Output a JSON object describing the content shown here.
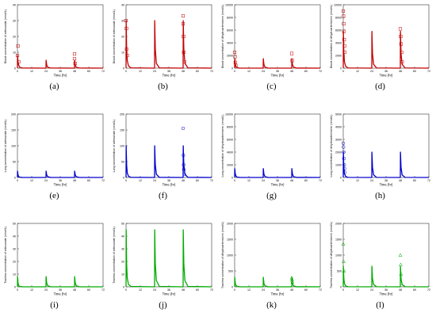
{
  "chart_data": [
    {
      "id": "a",
      "type": "line",
      "ylabel": "Blood concentration of artesunate (nmol/L)",
      "xlabel": "Time (hr)",
      "yticks": [
        0,
        10,
        20,
        30,
        40
      ],
      "ylim": [
        0,
        40
      ],
      "xticks": [
        0,
        12,
        24,
        36,
        48,
        60,
        72
      ],
      "xlim": [
        0,
        72
      ],
      "color": "#c00000",
      "marker": "square",
      "line_points": [
        [
          0,
          0
        ],
        [
          0.1,
          8
        ],
        [
          0.5,
          4
        ],
        [
          1,
          2
        ],
        [
          2,
          0.5
        ],
        [
          4,
          0.1
        ],
        [
          24,
          0
        ],
        [
          24.1,
          5
        ],
        [
          24.6,
          2
        ],
        [
          25.5,
          0.5
        ],
        [
          28,
          0.1
        ],
        [
          48,
          0
        ],
        [
          48.1,
          5
        ],
        [
          48.6,
          2
        ],
        [
          49.5,
          0.5
        ],
        [
          52,
          0.1
        ],
        [
          72,
          0
        ]
      ],
      "obs_points": [
        [
          0,
          8
        ],
        [
          0.5,
          14
        ],
        [
          1,
          4
        ],
        [
          48,
          9
        ],
        [
          48,
          6
        ],
        [
          48.5,
          3
        ]
      ]
    },
    {
      "id": "b",
      "type": "line",
      "ylabel": "Blood concentration of artesunate (nmol/L)",
      "xlabel": "Time (hr)",
      "yticks": [
        0,
        10,
        20,
        30,
        40
      ],
      "ylim": [
        0,
        40
      ],
      "xticks": [
        0,
        12,
        24,
        36,
        48,
        60,
        72
      ],
      "xlim": [
        0,
        72
      ],
      "color": "#c00000",
      "marker": "square",
      "line_points": [
        [
          0,
          0
        ],
        [
          0.1,
          30
        ],
        [
          0.5,
          12
        ],
        [
          1,
          5
        ],
        [
          2,
          1.5
        ],
        [
          4,
          0.2
        ],
        [
          24,
          0
        ],
        [
          24.1,
          30
        ],
        [
          24.6,
          12
        ],
        [
          25.5,
          3
        ],
        [
          28,
          0.2
        ],
        [
          48,
          0
        ],
        [
          48.1,
          30
        ],
        [
          48.6,
          12
        ],
        [
          49.5,
          3
        ],
        [
          52,
          0.2
        ],
        [
          72,
          0
        ]
      ],
      "obs_points": [
        [
          0,
          30
        ],
        [
          0.3,
          25
        ],
        [
          0.5,
          12
        ],
        [
          1,
          8
        ],
        [
          48,
          33
        ],
        [
          48,
          28
        ],
        [
          48.3,
          20
        ],
        [
          48.5,
          10
        ],
        [
          49,
          4
        ]
      ]
    },
    {
      "id": "c",
      "type": "line",
      "ylabel": "Blood concentration of dihydroartemisinin (nmol/L)",
      "xlabel": "Time (hr)",
      "yticks": [
        0,
        2000,
        4000,
        6000,
        8000,
        10000
      ],
      "ylim": [
        0,
        10000
      ],
      "xticks": [
        0,
        12,
        24,
        36,
        48,
        60,
        72
      ],
      "xlim": [
        0,
        72
      ],
      "color": "#c00000",
      "marker": "square",
      "line_points": [
        [
          0,
          0
        ],
        [
          0.1,
          1500
        ],
        [
          0.5,
          700
        ],
        [
          1,
          300
        ],
        [
          2,
          80
        ],
        [
          4,
          10
        ],
        [
          24,
          0
        ],
        [
          24.1,
          1500
        ],
        [
          24.6,
          600
        ],
        [
          25.5,
          150
        ],
        [
          28,
          10
        ],
        [
          48,
          0
        ],
        [
          48.1,
          1500
        ],
        [
          48.6,
          600
        ],
        [
          49.5,
          150
        ],
        [
          52,
          10
        ],
        [
          72,
          0
        ]
      ],
      "obs_points": [
        [
          0,
          2500
        ],
        [
          0.3,
          1800
        ],
        [
          0.6,
          900
        ],
        [
          1,
          400
        ],
        [
          48,
          2300
        ],
        [
          48.4,
          1200
        ]
      ]
    },
    {
      "id": "d",
      "type": "line",
      "ylabel": "Blood concentration of dihydroartemisinin (nmol/L)",
      "xlabel": "Time (hr)",
      "yticks": [
        0,
        2000,
        4000,
        6000,
        8000,
        10000
      ],
      "ylim": [
        0,
        10000
      ],
      "xticks": [
        0,
        12,
        24,
        36,
        48,
        60,
        72
      ],
      "xlim": [
        0,
        72
      ],
      "color": "#c00000",
      "marker": "square",
      "line_points": [
        [
          0,
          0
        ],
        [
          0.1,
          5800
        ],
        [
          0.5,
          2500
        ],
        [
          1,
          1000
        ],
        [
          2,
          300
        ],
        [
          4,
          30
        ],
        [
          24,
          0
        ],
        [
          24.1,
          5800
        ],
        [
          24.6,
          2300
        ],
        [
          25.5,
          600
        ],
        [
          28,
          30
        ],
        [
          48,
          0
        ],
        [
          48.1,
          5800
        ],
        [
          48.6,
          2300
        ],
        [
          49.5,
          600
        ],
        [
          52,
          30
        ],
        [
          72,
          0
        ]
      ],
      "obs_points": [
        [
          0,
          9000
        ],
        [
          0.2,
          8200
        ],
        [
          0.4,
          7000
        ],
        [
          0.6,
          5800
        ],
        [
          0.8,
          4500
        ],
        [
          1,
          3500
        ],
        [
          1.3,
          2500
        ],
        [
          48,
          6200
        ],
        [
          48.3,
          5000
        ],
        [
          48.6,
          3800
        ],
        [
          49,
          2500
        ],
        [
          49.5,
          1000
        ]
      ]
    },
    {
      "id": "e",
      "type": "line",
      "ylabel": "Lung concentration of artesunate (nmol/L)",
      "xlabel": "Time (hr)",
      "yticks": [
        0,
        50,
        100,
        150,
        200
      ],
      "ylim": [
        0,
        200
      ],
      "xticks": [
        0,
        12,
        24,
        36,
        48,
        60,
        72
      ],
      "xlim": [
        0,
        72
      ],
      "color": "#0000cc",
      "marker": "circle",
      "line_points": [
        [
          0,
          0
        ],
        [
          0.1,
          20
        ],
        [
          0.5,
          8
        ],
        [
          1,
          3
        ],
        [
          2,
          1
        ],
        [
          4,
          0.2
        ],
        [
          24,
          0
        ],
        [
          24.1,
          20
        ],
        [
          24.6,
          8
        ],
        [
          25.5,
          2
        ],
        [
          28,
          0.2
        ],
        [
          48,
          0
        ],
        [
          48.1,
          20
        ],
        [
          48.6,
          8
        ],
        [
          49.5,
          2
        ],
        [
          52,
          0.2
        ],
        [
          72,
          0
        ]
      ],
      "obs_points": []
    },
    {
      "id": "f",
      "type": "line",
      "ylabel": "Lung concentration of artesunate (nmol/L)",
      "xlabel": "Time (hr)",
      "yticks": [
        0,
        50,
        100,
        150,
        200
      ],
      "ylim": [
        0,
        200
      ],
      "xticks": [
        0,
        12,
        24,
        36,
        48,
        60,
        72
      ],
      "xlim": [
        0,
        72
      ],
      "color": "#0000cc",
      "marker": "circle",
      "line_points": [
        [
          0,
          0
        ],
        [
          0.1,
          100
        ],
        [
          0.5,
          40
        ],
        [
          1,
          15
        ],
        [
          2,
          4
        ],
        [
          4,
          0.5
        ],
        [
          24,
          0
        ],
        [
          24.1,
          100
        ],
        [
          24.6,
          40
        ],
        [
          25.5,
          10
        ],
        [
          28,
          0.5
        ],
        [
          48,
          0
        ],
        [
          48.1,
          100
        ],
        [
          48.6,
          40
        ],
        [
          49.5,
          10
        ],
        [
          52,
          0.5
        ],
        [
          72,
          0
        ]
      ],
      "obs_points": [
        [
          48,
          155
        ],
        [
          48.2,
          70
        ],
        [
          48.4,
          40
        ],
        [
          48.6,
          25
        ],
        [
          49,
          10
        ]
      ]
    },
    {
      "id": "g",
      "type": "line",
      "ylabel": "Lung concentration of dihydroartemisinin (nmol/L)",
      "xlabel": "Time (hr)",
      "yticks": [
        0,
        2000,
        4000,
        6000,
        8000,
        10000
      ],
      "ylim": [
        0,
        10000
      ],
      "xticks": [
        0,
        12,
        24,
        36,
        48,
        60,
        72
      ],
      "xlim": [
        0,
        72
      ],
      "color": "#0000cc",
      "marker": "circle",
      "line_points": [
        [
          0,
          0
        ],
        [
          0.1,
          1400
        ],
        [
          0.5,
          600
        ],
        [
          1,
          250
        ],
        [
          2,
          60
        ],
        [
          4,
          10
        ],
        [
          24,
          0
        ],
        [
          24.1,
          1400
        ],
        [
          24.6,
          550
        ],
        [
          25.5,
          130
        ],
        [
          28,
          10
        ],
        [
          48,
          0
        ],
        [
          48.1,
          1400
        ],
        [
          48.6,
          550
        ],
        [
          49.5,
          130
        ],
        [
          52,
          10
        ],
        [
          72,
          0
        ]
      ],
      "obs_points": []
    },
    {
      "id": "h",
      "type": "line",
      "ylabel": "Lung concentration of dihydroartemisinin (nmol/L)",
      "xlabel": "Time (hr)",
      "yticks": [
        0,
        1000,
        2000,
        3000,
        4000,
        5000
      ],
      "ylim": [
        0,
        5000
      ],
      "xticks": [
        0,
        12,
        24,
        36,
        48,
        60,
        72
      ],
      "xlim": [
        0,
        72
      ],
      "color": "#0000cc",
      "marker": "circle",
      "line_points": [
        [
          0,
          0
        ],
        [
          0.1,
          2000
        ],
        [
          0.5,
          800
        ],
        [
          1,
          300
        ],
        [
          2,
          80
        ],
        [
          4,
          10
        ],
        [
          24,
          0
        ],
        [
          24.1,
          2000
        ],
        [
          24.6,
          800
        ],
        [
          25.5,
          200
        ],
        [
          28,
          10
        ],
        [
          48,
          0
        ],
        [
          48.1,
          2000
        ],
        [
          48.6,
          800
        ],
        [
          49.5,
          200
        ],
        [
          52,
          10
        ],
        [
          72,
          0
        ]
      ],
      "obs_points": [
        [
          0,
          2700
        ],
        [
          0.2,
          2400
        ],
        [
          0.4,
          2000
        ],
        [
          0.6,
          1500
        ],
        [
          0.8,
          1000
        ],
        [
          1,
          700
        ],
        [
          1.3,
          400
        ]
      ]
    },
    {
      "id": "i",
      "type": "line",
      "ylabel": "Trachea concentration of artesunate (nmol/L)",
      "xlabel": "Time (hr)",
      "yticks": [
        0,
        10,
        20,
        30,
        40,
        50
      ],
      "ylim": [
        0,
        50
      ],
      "xticks": [
        0,
        12,
        24,
        36,
        48,
        60,
        72
      ],
      "xlim": [
        0,
        72
      ],
      "color": "#00aa00",
      "marker": "triangle",
      "line_points": [
        [
          0,
          0
        ],
        [
          0.1,
          8
        ],
        [
          0.5,
          3
        ],
        [
          1,
          1
        ],
        [
          2,
          0.3
        ],
        [
          4,
          0.05
        ],
        [
          24,
          0
        ],
        [
          24.1,
          8
        ],
        [
          24.6,
          3
        ],
        [
          25.5,
          0.8
        ],
        [
          28,
          0.05
        ],
        [
          48,
          0
        ],
        [
          48.1,
          8
        ],
        [
          48.6,
          3
        ],
        [
          49.5,
          0.8
        ],
        [
          52,
          0.05
        ],
        [
          72,
          0
        ]
      ],
      "obs_points": []
    },
    {
      "id": "j",
      "type": "line",
      "ylabel": "Trachea concentration of artesunate (nmol/L)",
      "xlabel": "Time (hr)",
      "yticks": [
        0,
        10,
        20,
        30,
        40,
        50
      ],
      "ylim": [
        0,
        50
      ],
      "xticks": [
        0,
        12,
        24,
        36,
        48,
        60,
        72
      ],
      "xlim": [
        0,
        72
      ],
      "color": "#00aa00",
      "marker": "triangle",
      "line_points": [
        [
          0,
          0
        ],
        [
          0.1,
          45
        ],
        [
          0.5,
          18
        ],
        [
          1,
          7
        ],
        [
          2,
          2
        ],
        [
          4,
          0.3
        ],
        [
          24,
          0
        ],
        [
          24.1,
          45
        ],
        [
          24.6,
          18
        ],
        [
          25.5,
          5
        ],
        [
          28,
          0.3
        ],
        [
          48,
          0
        ],
        [
          48.1,
          45
        ],
        [
          48.6,
          18
        ],
        [
          49.5,
          5
        ],
        [
          52,
          0.3
        ],
        [
          72,
          0
        ]
      ],
      "obs_points": []
    },
    {
      "id": "k",
      "type": "line",
      "ylabel": "Trachea concentration of dihydroartemisinin (nmol/L)",
      "xlabel": "Time (hr)",
      "yticks": [
        0,
        500,
        1000,
        1500,
        2000
      ],
      "ylim": [
        0,
        2000
      ],
      "xticks": [
        0,
        12,
        24,
        36,
        48,
        60,
        72
      ],
      "xlim": [
        0,
        72
      ],
      "color": "#00aa00",
      "marker": "triangle",
      "line_points": [
        [
          0,
          0
        ],
        [
          0.1,
          300
        ],
        [
          0.5,
          120
        ],
        [
          1,
          50
        ],
        [
          2,
          15
        ],
        [
          4,
          2
        ],
        [
          24,
          0
        ],
        [
          24.1,
          300
        ],
        [
          24.6,
          110
        ],
        [
          25.5,
          30
        ],
        [
          28,
          2
        ],
        [
          48,
          0
        ],
        [
          48.1,
          300
        ],
        [
          48.6,
          110
        ],
        [
          49.5,
          30
        ],
        [
          52,
          2
        ],
        [
          72,
          0
        ]
      ],
      "obs_points": [
        [
          48,
          280
        ],
        [
          48.3,
          220
        ],
        [
          48.6,
          150
        ]
      ]
    },
    {
      "id": "l",
      "type": "line",
      "ylabel": "Trachea concentration of dihydroartemisinin (nmol/L)",
      "xlabel": "Time (hr)",
      "yticks": [
        0,
        500,
        1000,
        1500,
        2000
      ],
      "ylim": [
        0,
        2000
      ],
      "xticks": [
        0,
        12,
        24,
        36,
        48,
        60,
        72
      ],
      "xlim": [
        0,
        72
      ],
      "color": "#00aa00",
      "marker": "triangle",
      "line_points": [
        [
          0,
          0
        ],
        [
          0.1,
          650
        ],
        [
          0.5,
          260
        ],
        [
          1,
          100
        ],
        [
          2,
          30
        ],
        [
          4,
          4
        ],
        [
          24,
          0
        ],
        [
          24.1,
          650
        ],
        [
          24.6,
          260
        ],
        [
          25.5,
          70
        ],
        [
          28,
          4
        ],
        [
          48,
          0
        ],
        [
          48.1,
          650
        ],
        [
          48.6,
          260
        ],
        [
          49.5,
          70
        ],
        [
          52,
          4
        ],
        [
          72,
          0
        ]
      ],
      "obs_points": [
        [
          0,
          1350
        ],
        [
          0.3,
          800
        ],
        [
          0.6,
          500
        ],
        [
          48,
          1000
        ],
        [
          48.3,
          700
        ],
        [
          48.6,
          400
        ]
      ]
    }
  ],
  "panel_letters": [
    "(a)",
    "(b)",
    "(c)",
    "(d)",
    "(e)",
    "(f)",
    "(g)",
    "(h)",
    "(i)",
    "(j)",
    "(k)",
    "(l)"
  ]
}
